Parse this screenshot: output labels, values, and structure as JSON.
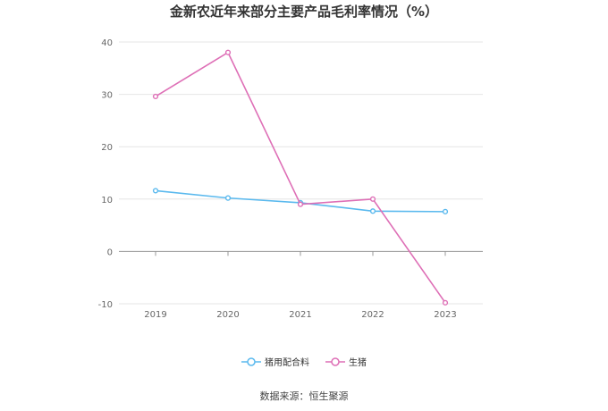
{
  "chart_data": {
    "type": "line",
    "title": "金新农近年来部分主要产品毛利率情况（%）",
    "categories": [
      "2019",
      "2020",
      "2021",
      "2022",
      "2023"
    ],
    "ylim": [
      -10,
      40
    ],
    "yticks": [
      "40",
      "30",
      "20",
      "10",
      "0",
      "-10"
    ],
    "grid": true,
    "legend_position": "bottom-center",
    "series": [
      {
        "name": "猪用配合料",
        "color": "#5ab9ee",
        "values": [
          11.6,
          10.2,
          9.3,
          7.7,
          7.6
        ]
      },
      {
        "name": "生猪",
        "color": "#de6fb6",
        "values": [
          29.6,
          38.0,
          9.0,
          10.0,
          -9.8
        ]
      }
    ]
  },
  "source": "数据来源：恒生聚源"
}
